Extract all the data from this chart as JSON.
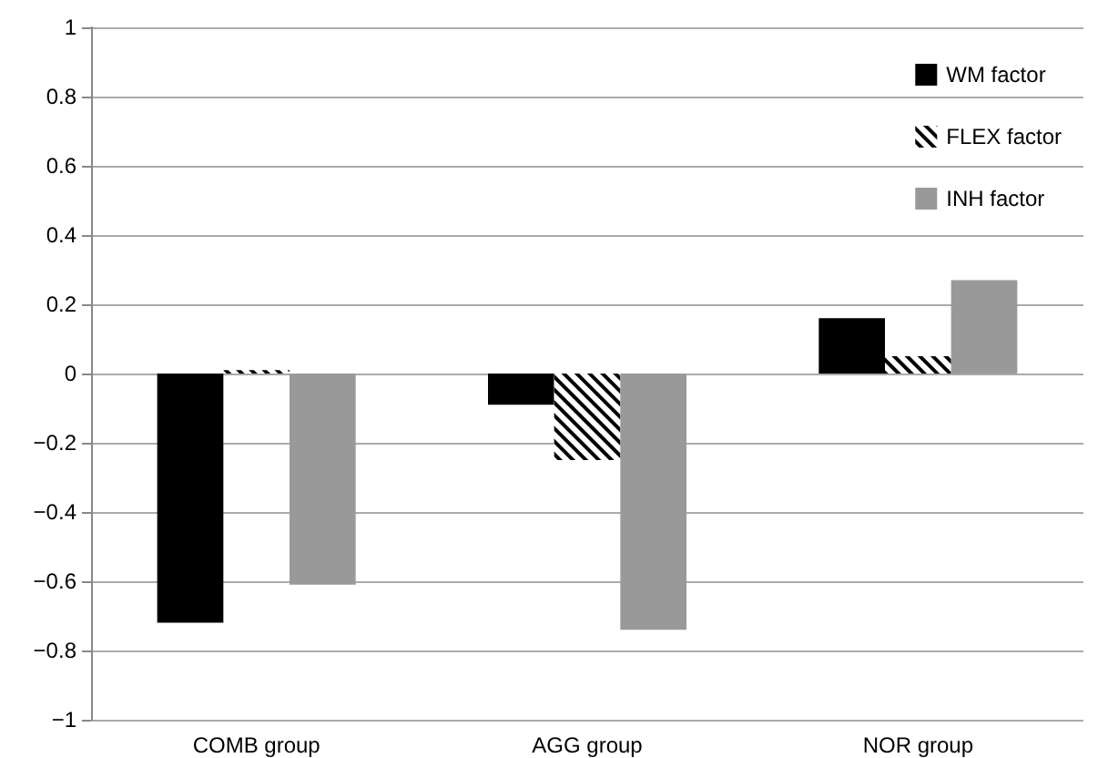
{
  "chart_data": {
    "type": "bar",
    "categories": [
      "COMB group",
      "AGG group",
      "NOR group"
    ],
    "series": [
      {
        "name": "WM factor",
        "color": "#000000",
        "values": [
          -0.72,
          -0.09,
          0.16
        ]
      },
      {
        "name": "FLEX factor",
        "color": "#000000",
        "values": [
          0.01,
          -0.25,
          0.05
        ]
      },
      {
        "name": "INH factor",
        "color": "#999999",
        "values": [
          -0.61,
          -0.74,
          0.27
        ]
      }
    ],
    "ylim": [
      -1,
      1
    ],
    "yticks": [
      {
        "value": -1,
        "label": "−1"
      },
      {
        "value": -0.8,
        "label": "−0.8"
      },
      {
        "value": -0.6,
        "label": "−0.6"
      },
      {
        "value": -0.4,
        "label": "−0.4"
      },
      {
        "value": -0.2,
        "label": "−0.2"
      },
      0,
      0.2,
      0.4,
      0.6,
      0.8,
      1
    ],
    "grid": "y",
    "legend": "top right"
  }
}
